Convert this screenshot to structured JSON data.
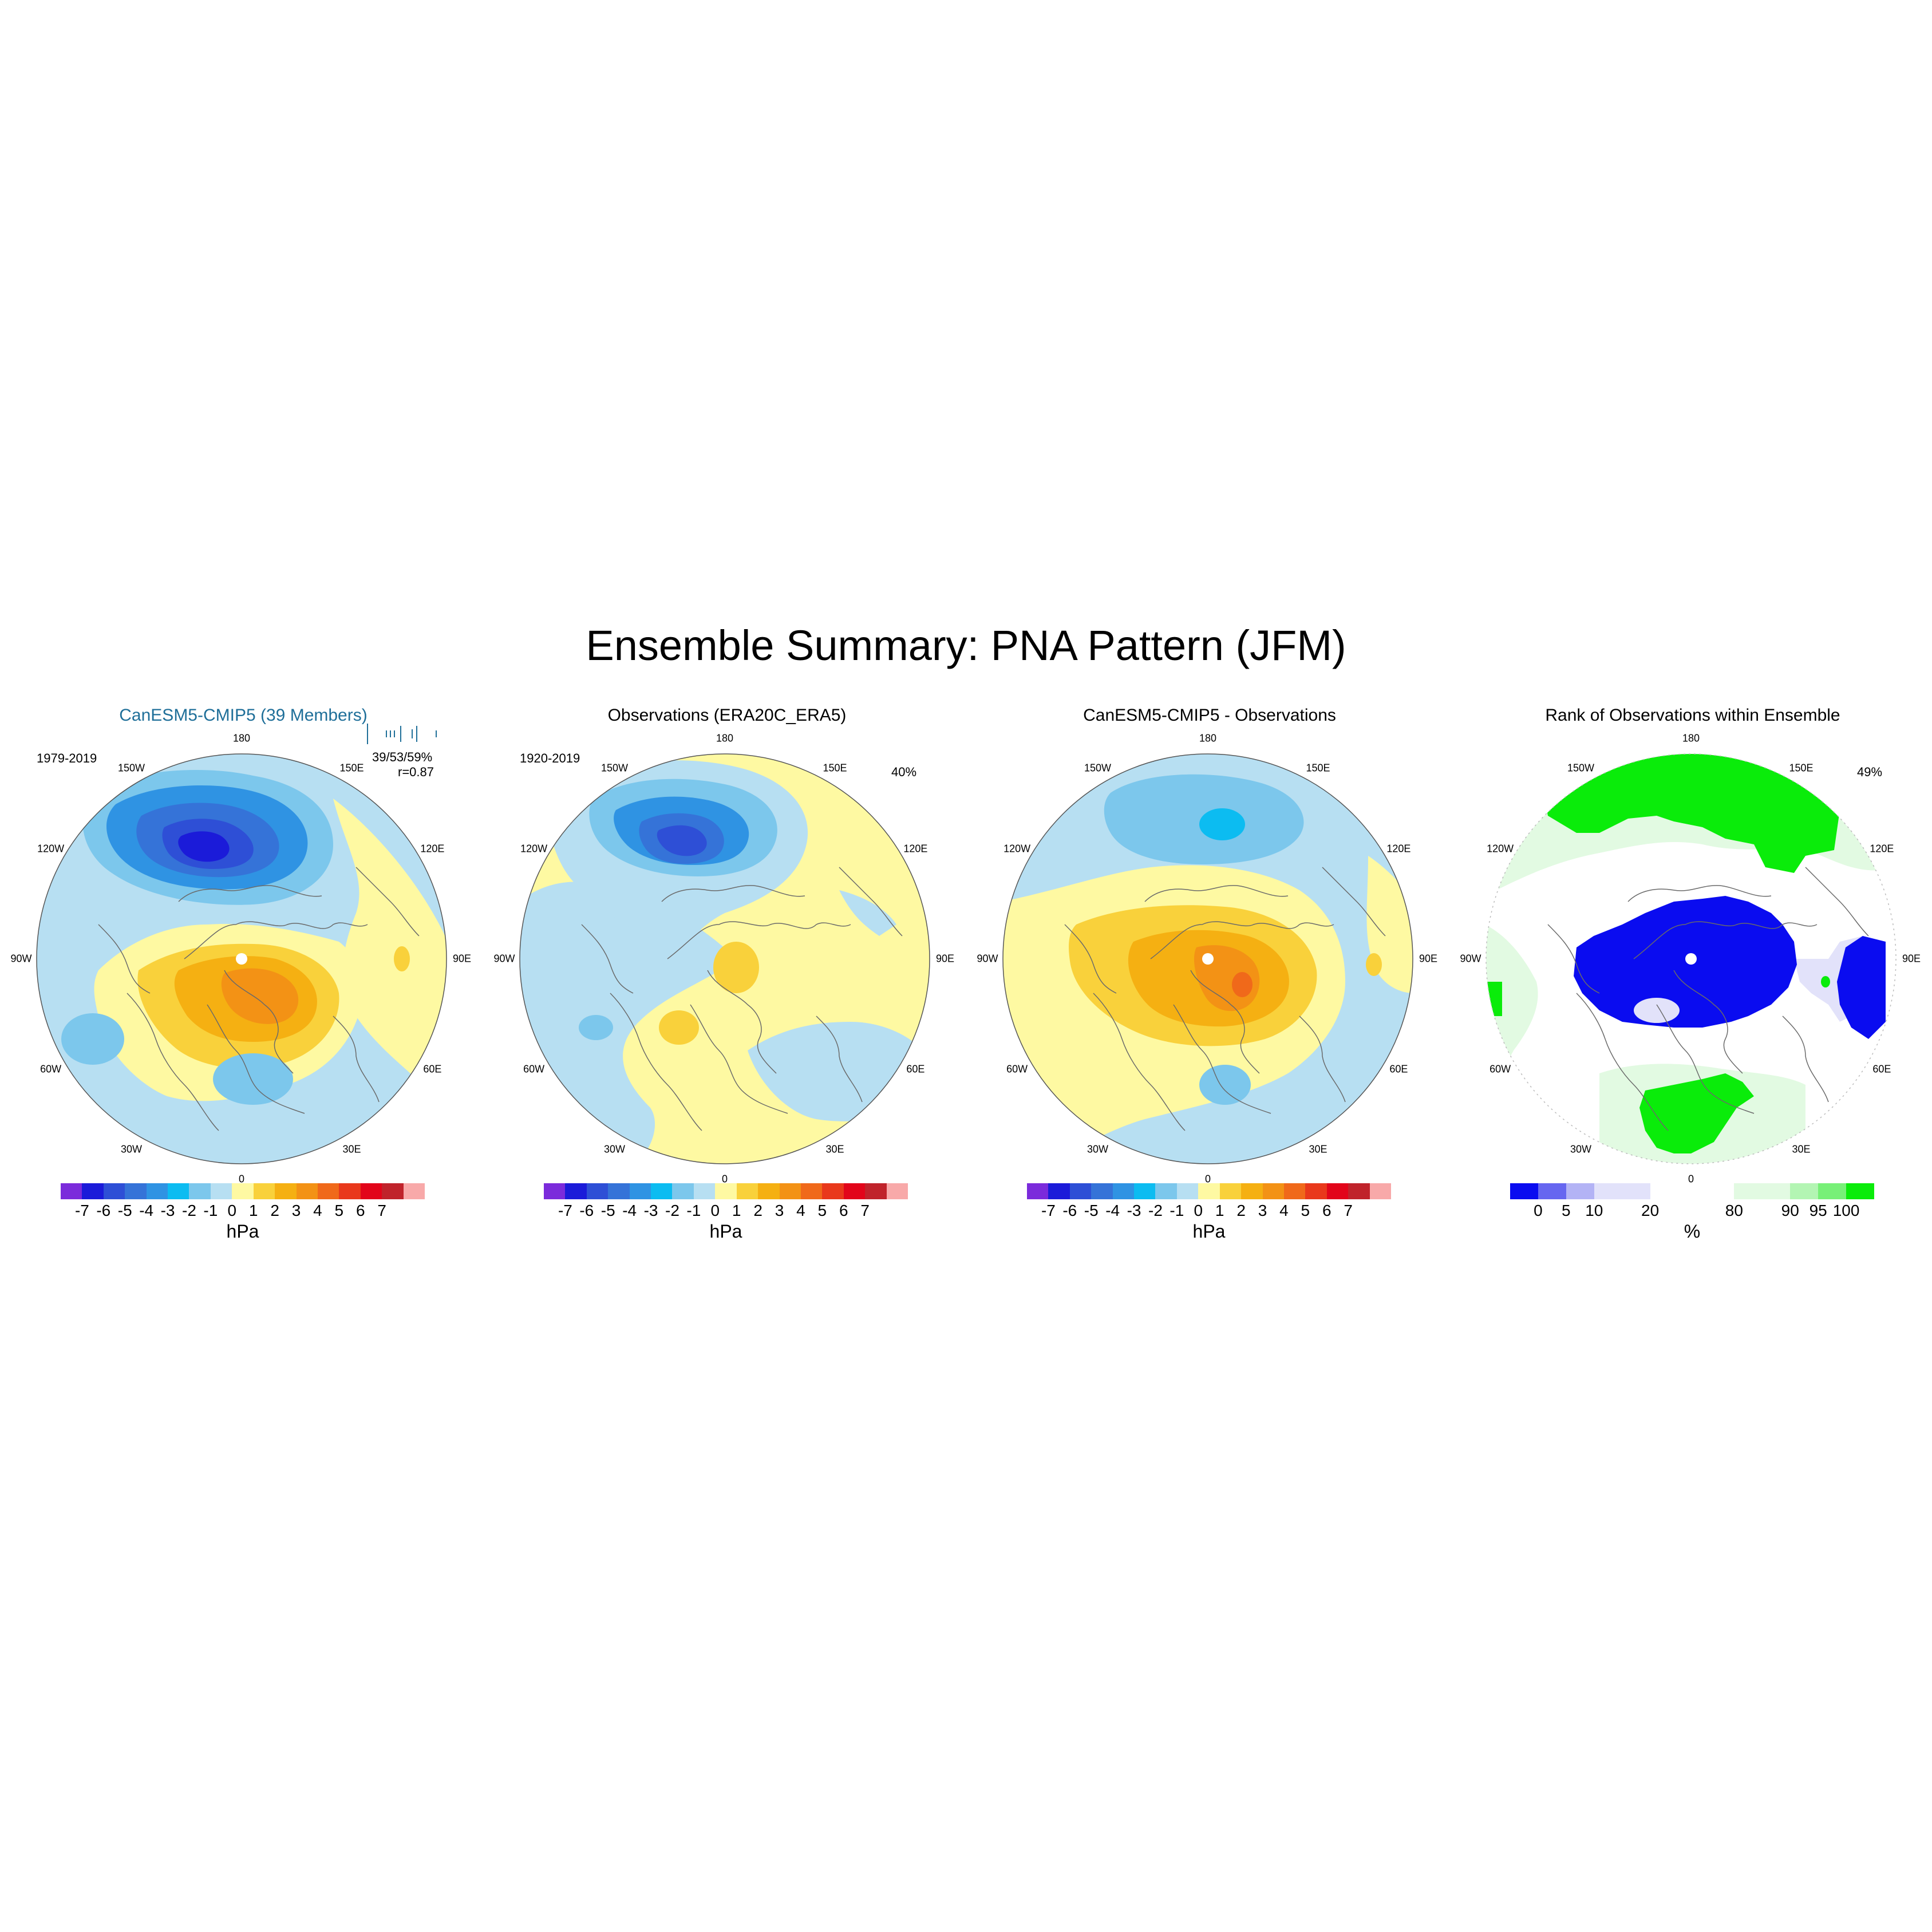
{
  "figure": {
    "title": "Ensemble Summary: PNA Pattern (JFM)"
  },
  "lon_labels": [
    "180",
    "150E",
    "120E",
    "90E",
    "60E",
    "30E",
    "0",
    "30W",
    "60W",
    "90W",
    "120W",
    "150W"
  ],
  "panels": [
    {
      "title": "CanESM5-CMIP5 (39 Members)",
      "left_note": "1979-2019",
      "right_note_1": "39/53/59%",
      "right_note_2": "r=0.87",
      "colorbar": "pressure"
    },
    {
      "title": "Observations (ERA20C_ERA5)",
      "left_note": "1920-2019",
      "right_note_1": "40%",
      "colorbar": "pressure"
    },
    {
      "title": "CanESM5-CMIP5 - Observations",
      "colorbar": "pressure"
    },
    {
      "title": "Rank of Observations within Ensemble",
      "right_note_1": "49%",
      "colorbar": "rank"
    }
  ],
  "colorbars": {
    "pressure": {
      "unit": "hPa",
      "colors": [
        "#7b2bdb",
        "#1b1bd9",
        "#2e4fd6",
        "#3573d8",
        "#2f93e3",
        "#0cbcf1",
        "#7cc7ec",
        "#b7dff2",
        "#fef9a2",
        "#f9d13b",
        "#f5b012",
        "#f39215",
        "#f0691a",
        "#e9381b",
        "#e2051a",
        "#c0232b",
        "#f8a9a9"
      ],
      "labels": [
        "-7",
        "-6",
        "-5",
        "-4",
        "-3",
        "-2",
        "-1",
        "0",
        "1",
        "2",
        "3",
        "4",
        "5",
        "6",
        "7"
      ]
    },
    "rank": {
      "unit": "%",
      "colors": [
        "#0a0cf0",
        "#6666f0",
        "#b3b3f5",
        "#e2e2fa",
        "#e2e2fa",
        "#ffffff",
        "#ffffff",
        "#ffffff",
        "#e2fae2",
        "#e2fae2",
        "#b3f5b3",
        "#77f077",
        "#0aec0a"
      ],
      "labels": [
        "0",
        "5",
        "10",
        "20",
        "80",
        "90",
        "95",
        "100"
      ],
      "label_boundaries": [
        1,
        2,
        3,
        5,
        8,
        10,
        11,
        12
      ]
    }
  }
}
